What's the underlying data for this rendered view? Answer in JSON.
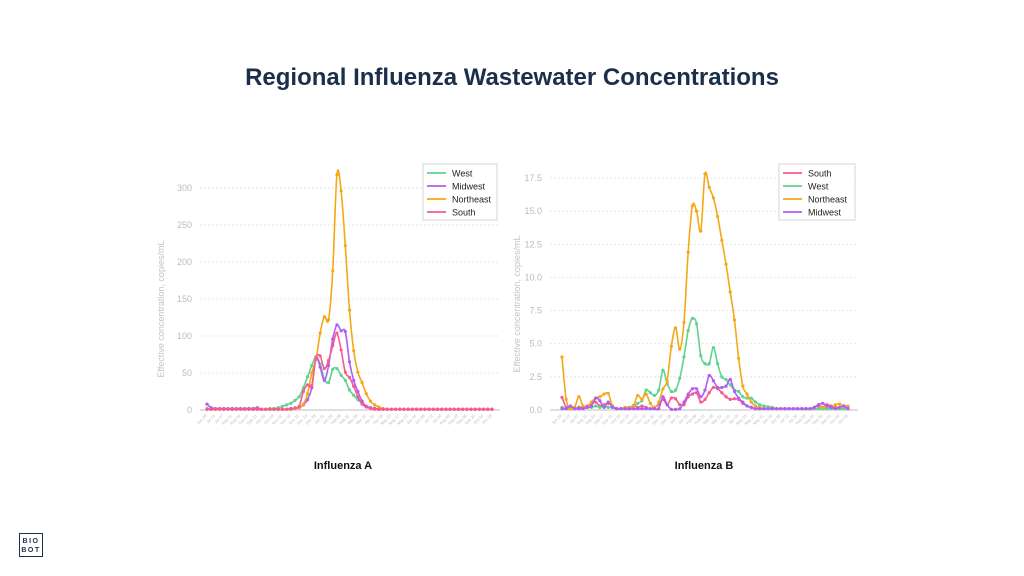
{
  "title": "Regional Influenza Wastewater Concentrations",
  "logo": {
    "line1": "BIO",
    "line2": "BOT"
  },
  "colors": {
    "West": "#5fd38d",
    "Midwest": "#b25cf5",
    "Northeast": "#f5a816",
    "South": "#f75a8f",
    "grid": "#dddddd",
    "axis_text": "#bbbbbb"
  },
  "chart_data": [
    {
      "type": "line",
      "title": "Influenza A",
      "xlabel": "",
      "ylabel": "Effective concentration, copies/mL",
      "ylim": [
        0,
        330
      ],
      "yticks": [
        0,
        50,
        100,
        150,
        200,
        250,
        300
      ],
      "grid": true,
      "legend_position": "top-right",
      "x_tick_labels": [
        "Jun 29",
        "Jul 13",
        "Jul 27",
        "Aug 10",
        "Aug 24",
        "Sep 07",
        "Sep 21",
        "Oct 05",
        "Oct 19",
        "Nov 02",
        "Nov 16",
        "Nov 30",
        "Dec 14",
        "Dec 28",
        "Jan 11",
        "Jan 25",
        "Feb 08",
        "Feb 22",
        "Mar 08",
        "Mar 22",
        "Apr 05",
        "Apr 19",
        "May 03",
        "May 17",
        "May 31",
        "Jun 14",
        "Jun 28",
        "Jul 12",
        "Jul 26",
        "Aug 09",
        "Aug 23",
        "Sep 06",
        "Sep 20",
        "Oct 04",
        "Oct 18"
      ],
      "series": [
        {
          "name": "West",
          "values": [
            2,
            1,
            1,
            1,
            1,
            1,
            1,
            1,
            1,
            1,
            1,
            1,
            1,
            1,
            1,
            2,
            2,
            3,
            5,
            7,
            9,
            13,
            18,
            30,
            45,
            60,
            72,
            62,
            42,
            37,
            55,
            56,
            47,
            40,
            27,
            20,
            14,
            9,
            5,
            3,
            2,
            1,
            1,
            1,
            1,
            1,
            1,
            1,
            1,
            1,
            1,
            1,
            1,
            1,
            1,
            1,
            1,
            1,
            1,
            1,
            1,
            1,
            1,
            1,
            1,
            1,
            1,
            1,
            1
          ]
        },
        {
          "name": "Midwest",
          "values": [
            8,
            3,
            2,
            2,
            2,
            2,
            2,
            2,
            2,
            2,
            2,
            2,
            3,
            1,
            1,
            1,
            1,
            1,
            1,
            1,
            2,
            2,
            3,
            7,
            14,
            30,
            70,
            58,
            40,
            60,
            96,
            115,
            107,
            106,
            65,
            40,
            25,
            12,
            5,
            3,
            2,
            1,
            1,
            1,
            1,
            1,
            1,
            1,
            1,
            1,
            1,
            1,
            1,
            1,
            1,
            1,
            1,
            1,
            1,
            1,
            1,
            1,
            1,
            1,
            1,
            1,
            1,
            1,
            1
          ]
        },
        {
          "name": "Northeast",
          "values": [
            1,
            1,
            1,
            1,
            1,
            1,
            1,
            1,
            1,
            1,
            1,
            1,
            1,
            1,
            1,
            1,
            1,
            1,
            1,
            1,
            1,
            2,
            3,
            8,
            22,
            50,
            68,
            104,
            126,
            122,
            188,
            318,
            296,
            222,
            135,
            80,
            51,
            37,
            22,
            12,
            7,
            4,
            2,
            1,
            1,
            1,
            1,
            1,
            1,
            1,
            1,
            1,
            1,
            1,
            1,
            1,
            1,
            1,
            1,
            1,
            1,
            1,
            1,
            1,
            1,
            1,
            1,
            1,
            1
          ]
        },
        {
          "name": "South",
          "values": [
            1,
            1,
            1,
            1,
            1,
            1,
            1,
            1,
            1,
            1,
            1,
            1,
            1,
            1,
            1,
            1,
            1,
            1,
            1,
            1,
            1,
            3,
            5,
            25,
            34,
            33,
            70,
            73,
            56,
            67,
            87,
            104,
            81,
            51,
            44,
            32,
            18,
            8,
            4,
            2,
            1,
            1,
            1,
            1,
            1,
            1,
            1,
            1,
            1,
            1,
            1,
            1,
            1,
            1,
            1,
            1,
            1,
            1,
            1,
            1,
            1,
            1,
            1,
            1,
            1,
            1,
            1,
            1,
            1
          ]
        }
      ]
    },
    {
      "type": "line",
      "title": "Influenza B",
      "xlabel": "",
      "ylabel": "Effective concentration, copies/mL",
      "ylim": [
        0,
        18.5
      ],
      "yticks": [
        "0.0",
        "2.5",
        "5.0",
        "7.5",
        "10.0",
        "12.5",
        "15.0",
        "17.5"
      ],
      "grid": true,
      "legend_position": "top-right",
      "x_tick_labels": [
        "Jun 29",
        "Jul 13",
        "Jul 27",
        "Aug 10",
        "Aug 24",
        "Sep 07",
        "Sep 21",
        "Oct 05",
        "Oct 19",
        "Nov 02",
        "Nov 16",
        "Nov 30",
        "Dec 14",
        "Dec 28",
        "Jan 11",
        "Jan 25",
        "Feb 08",
        "Feb 22",
        "Mar 08",
        "Mar 22",
        "Apr 05",
        "Apr 19",
        "May 03",
        "May 17",
        "May 31",
        "Jun 14",
        "Jun 28",
        "Jul 12",
        "Jul 26",
        "Aug 09",
        "Aug 23",
        "Sep 06",
        "Sep 20",
        "Oct 04",
        "Oct 18"
      ],
      "series": [
        {
          "name": "South",
          "values": [
            0.95,
            0.2,
            0.1,
            0.1,
            0.2,
            0.2,
            0.3,
            0.5,
            0.6,
            0.3,
            0.4,
            0.5,
            0.3,
            0.1,
            0.1,
            0.1,
            0.1,
            0.35,
            0.2,
            0.3,
            0.2,
            0.1,
            0.2,
            0.4,
            0.8,
            0.4,
            0.9,
            0.85,
            0.4,
            0.4,
            1.0,
            1.2,
            1.3,
            0.6,
            0.8,
            1.3,
            1.7,
            1.6,
            1.3,
            1.0,
            0.8,
            0.85,
            0.8,
            0.5,
            0.3,
            0.2,
            0.1,
            0.1,
            0.1,
            0.1,
            0.1,
            0.1,
            0.1,
            0.1,
            0.1,
            0.1,
            0.1,
            0.1,
            0.1,
            0.1,
            0.2,
            0.3,
            0.2,
            0.4,
            0.3,
            0.2,
            0.2,
            0.3,
            0.2
          ]
        },
        {
          "name": "West",
          "values": [
            0.2,
            0.1,
            0.1,
            0.2,
            0.1,
            0.1,
            0.2,
            0.2,
            0.3,
            0.2,
            0.3,
            0.2,
            0.2,
            0.1,
            0.1,
            0.1,
            0.2,
            0.3,
            0.5,
            0.7,
            1.5,
            1.3,
            1.1,
            1.5,
            3.0,
            2.0,
            1.4,
            1.5,
            2.4,
            4.0,
            6.0,
            6.9,
            6.5,
            4.1,
            3.5,
            3.5,
            4.7,
            3.5,
            2.5,
            2.3,
            1.9,
            1.5,
            1.4,
            1.0,
            0.9,
            0.9,
            0.6,
            0.4,
            0.3,
            0.25,
            0.2,
            0.1,
            0.1,
            0.1,
            0.1,
            0.1,
            0.1,
            0.1,
            0.1,
            0.1,
            0.1,
            0.1,
            0.1,
            0.1,
            0.1,
            0.1,
            0.1,
            0.1,
            0.1
          ]
        },
        {
          "name": "Northeast",
          "values": [
            4.0,
            0.8,
            0.1,
            0.2,
            1.0,
            0.3,
            0.2,
            0.6,
            0.9,
            1.0,
            1.2,
            1.25,
            0.3,
            0.1,
            0.1,
            0.2,
            0.2,
            0.3,
            1.1,
            0.8,
            1.2,
            0.5,
            0.2,
            0.6,
            1.6,
            2.2,
            4.8,
            6.2,
            4.6,
            6.6,
            11.9,
            15.4,
            15.0,
            13.5,
            17.8,
            16.8,
            16.0,
            14.6,
            12.8,
            11.0,
            8.9,
            6.8,
            3.9,
            1.8,
            1.2,
            0.6,
            0.3,
            0.2,
            0.1,
            0.1,
            0.1,
            0.1,
            0.1,
            0.1,
            0.1,
            0.1,
            0.1,
            0.1,
            0.1,
            0.1,
            0.2,
            0.4,
            0.2,
            0.3,
            0.2,
            0.4,
            0.45,
            0.3,
            0.3
          ]
        },
        {
          "name": "Midwest",
          "values": [
            0.1,
            0.1,
            0.3,
            0.1,
            0.1,
            0.1,
            0.2,
            0.3,
            0.9,
            0.7,
            0.2,
            0.6,
            0.2,
            0.1,
            0.1,
            0.1,
            0.1,
            0.1,
            0.1,
            0.1,
            0.1,
            0.1,
            0.1,
            0.1,
            1.0,
            0.4,
            0.05,
            0.05,
            0.1,
            0.6,
            1.2,
            1.6,
            1.6,
            1.0,
            1.5,
            2.6,
            2.2,
            1.7,
            1.7,
            1.8,
            2.3,
            1.4,
            0.9,
            0.6,
            0.3,
            0.2,
            0.1,
            0.1,
            0.1,
            0.1,
            0.1,
            0.1,
            0.1,
            0.1,
            0.1,
            0.1,
            0.1,
            0.1,
            0.1,
            0.1,
            0.2,
            0.4,
            0.5,
            0.3,
            0.2,
            0.1,
            0.2,
            0.3,
            0.1
          ]
        }
      ]
    }
  ]
}
